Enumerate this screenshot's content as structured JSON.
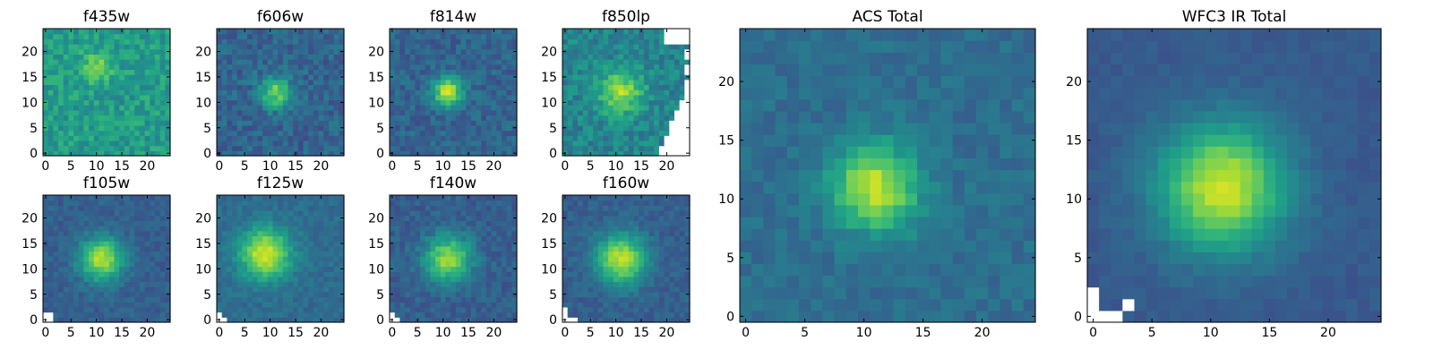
{
  "colors": {
    "colormap": "viridis",
    "masked": "#ffffff",
    "frame": "#000000"
  },
  "chart_data": [
    {
      "type": "heatmap",
      "title": "f435w",
      "grid": [
        25,
        25
      ],
      "xticks": [
        0,
        5,
        10,
        15,
        20
      ],
      "yticks": [
        0,
        5,
        10,
        15,
        20
      ],
      "peak": [
        10,
        17
      ],
      "sigma": 2.0,
      "amp": 0.25,
      "bg": 0.55,
      "noise": 0.22,
      "masked_cells": []
    },
    {
      "type": "heatmap",
      "title": "f606w",
      "grid": [
        25,
        25
      ],
      "xticks": [
        0,
        5,
        10,
        15,
        20
      ],
      "yticks": [
        0,
        5,
        10,
        15,
        20
      ],
      "peak": [
        11,
        12
      ],
      "sigma": 2.2,
      "amp": 0.45,
      "bg": 0.32,
      "noise": 0.2,
      "masked_cells": []
    },
    {
      "type": "heatmap",
      "title": "f814w",
      "grid": [
        25,
        25
      ],
      "xticks": [
        0,
        5,
        10,
        15,
        20
      ],
      "yticks": [
        0,
        5,
        10,
        15,
        20
      ],
      "peak": [
        11,
        12
      ],
      "sigma": 2.0,
      "amp": 0.6,
      "bg": 0.32,
      "noise": 0.18,
      "masked_cells": []
    },
    {
      "type": "heatmap",
      "title": "f850lp",
      "grid": [
        25,
        25
      ],
      "xticks": [
        0,
        5,
        10,
        15,
        20
      ],
      "yticks": [
        0,
        5,
        10,
        15,
        20
      ],
      "peak": [
        11,
        12
      ],
      "sigma": 3.0,
      "amp": 0.4,
      "bg": 0.45,
      "noise": 0.22,
      "masked_region": "top-right-diagonal"
    },
    {
      "type": "heatmap",
      "title": "f105w",
      "grid": [
        25,
        25
      ],
      "xticks": [
        0,
        5,
        10,
        15,
        20
      ],
      "yticks": [
        0,
        5,
        10,
        15,
        20
      ],
      "peak": [
        11,
        12
      ],
      "sigma": 3.0,
      "amp": 0.6,
      "bg": 0.3,
      "noise": 0.12,
      "masked_cells": [
        [
          0,
          0
        ],
        [
          1,
          0
        ],
        [
          0,
          1
        ],
        [
          1,
          1
        ]
      ]
    },
    {
      "type": "heatmap",
      "title": "f125w",
      "grid": [
        25,
        25
      ],
      "xticks": [
        0,
        5,
        10,
        15,
        20
      ],
      "yticks": [
        0,
        5,
        10,
        15,
        20
      ],
      "peak": [
        9,
        13
      ],
      "sigma": 3.5,
      "amp": 0.6,
      "bg": 0.35,
      "noise": 0.12,
      "masked_cells": [
        [
          0,
          0
        ],
        [
          1,
          0
        ],
        [
          0,
          1
        ]
      ]
    },
    {
      "type": "heatmap",
      "title": "f140w",
      "grid": [
        25,
        25
      ],
      "xticks": [
        0,
        5,
        10,
        15,
        20
      ],
      "yticks": [
        0,
        5,
        10,
        15,
        20
      ],
      "peak": [
        11,
        12
      ],
      "sigma": 3.2,
      "amp": 0.55,
      "bg": 0.3,
      "noise": 0.14,
      "masked_cells": [
        [
          0,
          0
        ],
        [
          1,
          0
        ],
        [
          0,
          1
        ]
      ]
    },
    {
      "type": "heatmap",
      "title": "f160w",
      "grid": [
        25,
        25
      ],
      "xticks": [
        0,
        5,
        10,
        15,
        20
      ],
      "yticks": [
        0,
        5,
        10,
        15,
        20
      ],
      "peak": [
        11,
        12
      ],
      "sigma": 3.5,
      "amp": 0.6,
      "bg": 0.3,
      "noise": 0.12,
      "masked_cells": [
        [
          0,
          0
        ],
        [
          1,
          0
        ],
        [
          0,
          1
        ],
        [
          2,
          0
        ],
        [
          0,
          2
        ]
      ]
    },
    {
      "type": "heatmap",
      "title": "ACS Total",
      "grid": [
        25,
        25
      ],
      "xticks": [
        0,
        5,
        10,
        15,
        20
      ],
      "yticks": [
        0,
        5,
        10,
        15,
        20
      ],
      "peak": [
        11,
        11
      ],
      "sigma": 2.6,
      "amp": 0.55,
      "bg": 0.36,
      "noise": 0.12,
      "masked_cells": []
    },
    {
      "type": "heatmap",
      "title": "WFC3 IR Total",
      "grid": [
        25,
        25
      ],
      "xticks": [
        0,
        5,
        10,
        15,
        20
      ],
      "yticks": [
        0,
        5,
        10,
        15,
        20
      ],
      "peak": [
        11,
        11
      ],
      "sigma": 3.8,
      "amp": 0.65,
      "bg": 0.28,
      "noise": 0.06,
      "masked_cells": [
        [
          0,
          0
        ],
        [
          1,
          0
        ],
        [
          2,
          0
        ],
        [
          0,
          1
        ],
        [
          3,
          1
        ],
        [
          0,
          2
        ]
      ]
    }
  ]
}
